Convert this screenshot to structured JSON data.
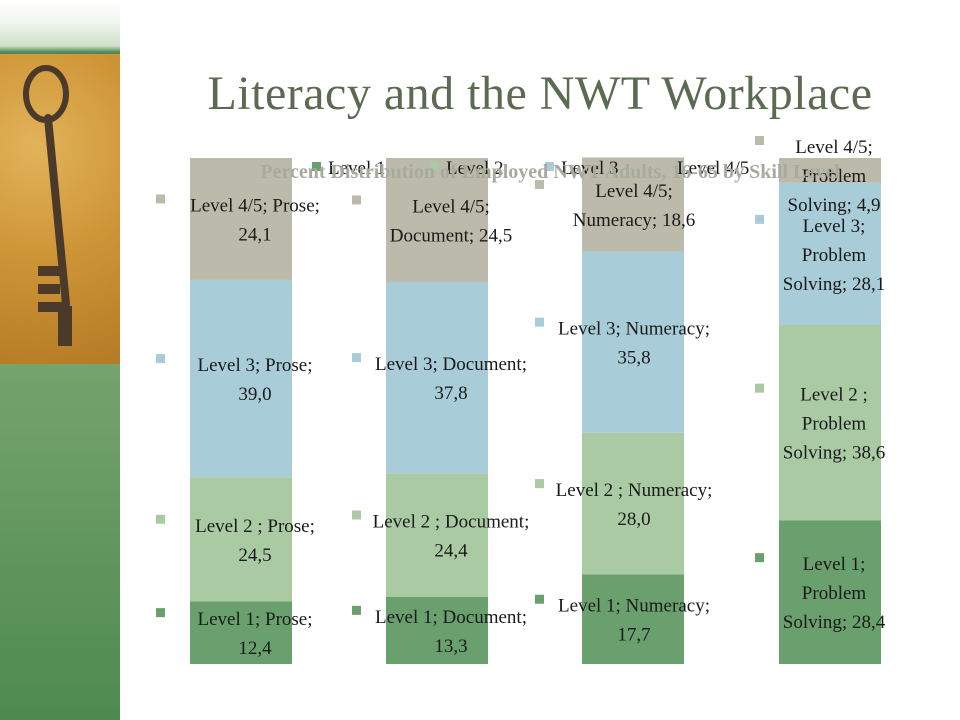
{
  "slide": {
    "title": "Literacy and the NWT Workplace"
  },
  "colors": {
    "level1": "#6a9f6e",
    "level2": "#aacaa4",
    "level3": "#a8ccd8",
    "level45": "#bcbaaa"
  },
  "chart_data": {
    "type": "bar",
    "stacked": true,
    "title": "Percent Distribution of Employed NWT Adults, 16-65 by Skill Level",
    "legend": [
      "Level 1",
      "Level 2",
      "Level 3",
      "Level 4/5"
    ],
    "legend_position": "top",
    "categories": [
      "Prose",
      "Document",
      "Numeracy",
      "Problem Solving"
    ],
    "ylim": [
      0,
      100
    ],
    "series": [
      {
        "name": "Level 1",
        "values": [
          12.4,
          13.3,
          17.7,
          28.4
        ]
      },
      {
        "name": "Level 2",
        "values": [
          24.5,
          24.4,
          28.0,
          38.6
        ]
      },
      {
        "name": "Level 3",
        "values": [
          39.0,
          37.8,
          35.8,
          28.1
        ]
      },
      {
        "name": "Level 4/5",
        "values": [
          24.1,
          24.5,
          18.6,
          4.9
        ]
      }
    ],
    "data_labels": [
      [
        "Level 1; Prose; 12,4",
        "Level 1; Document; 13,3",
        "Level 1; Numeracy; 17,7",
        "Level 1; Problem Solving; 28,4"
      ],
      [
        "Level 2 ; Prose; 24,5",
        "Level 2 ; Document; 24,4",
        "Level 2 ; Numeracy; 28,0",
        "Level 2 ; Problem Solving; 38,6"
      ],
      [
        "Level 3; Prose; 39,0",
        "Level 3; Document; 37,8",
        "Level 3; Numeracy; 35,8",
        "Level 3; Problem Solving; 28,1"
      ],
      [
        "Level 4/5; Prose; 24,1",
        "Level 4/5; Document; 24,5",
        "Level 4/5; Numeracy; 18,6",
        "Level 4/5; Problem Solving; 4,9"
      ]
    ]
  }
}
